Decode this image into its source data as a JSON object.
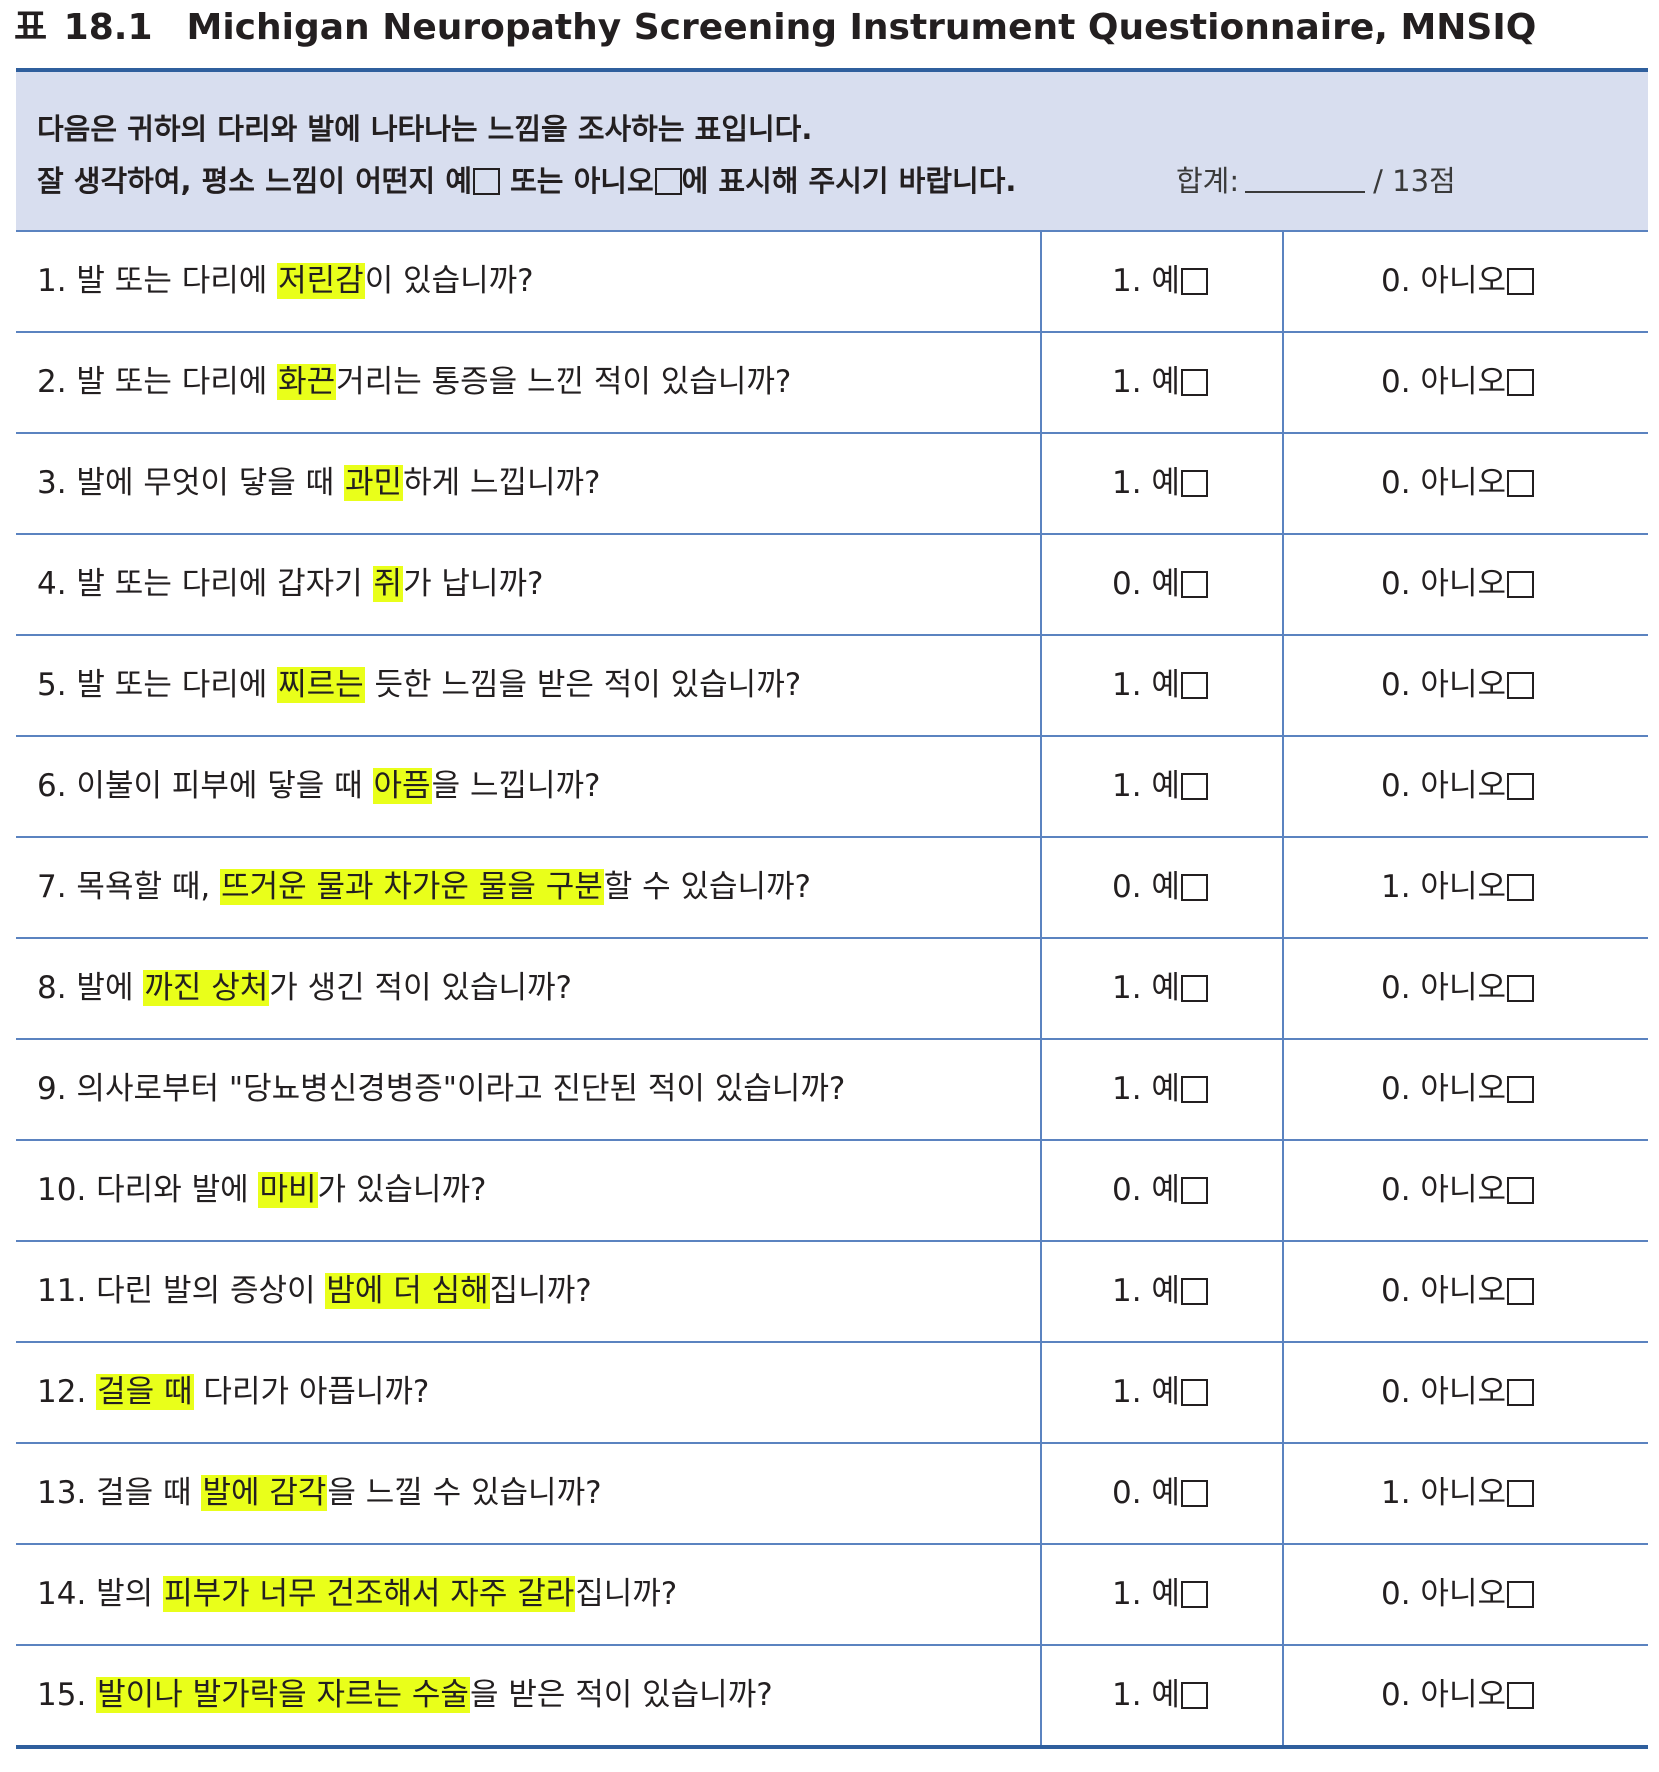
{
  "title": {
    "prefix": "표",
    "number": "18.1",
    "text": "Michigan Neuropathy Screening Instrument Questionnaire, MNSIQ"
  },
  "instructions": {
    "line1": "다음은 귀하의 다리와 발에 나타나는 느낌을 조사하는 표입니다.",
    "line2_a": "잘 생각하여, 평소 느낌이 어떤지 예",
    "line2_b": " 또는 아니오",
    "line2_c": "에 표시해 주시기 바랍니다."
  },
  "total": {
    "label": "합계:",
    "suffix": "/ 13점"
  },
  "questions": [
    {
      "parts": [
        "1. 발 또는 다리에 ",
        "저린감",
        "이 있습니까?"
      ],
      "yes": "1. 예",
      "no": "0. 아니오"
    },
    {
      "parts": [
        "2. 발 또는 다리에 ",
        "화끈",
        "거리는 통증을 느낀 적이 있습니까?"
      ],
      "yes": "1. 예",
      "no": "0. 아니오"
    },
    {
      "parts": [
        "3. 발에 무엇이 닿을 때 ",
        "과민",
        "하게 느낍니까?"
      ],
      "yes": "1. 예",
      "no": "0. 아니오"
    },
    {
      "parts": [
        "4. 발 또는 다리에 갑자기 ",
        "쥐",
        "가 납니까?"
      ],
      "yes": "0. 예",
      "no": "0. 아니오"
    },
    {
      "parts": [
        "5. 발 또는 다리에 ",
        "찌르는",
        " 듯한 느낌을 받은 적이 있습니까?"
      ],
      "yes": "1. 예",
      "no": "0. 아니오"
    },
    {
      "parts": [
        "6. 이불이 피부에 닿을 때 ",
        "아픔",
        "을 느낍니까?"
      ],
      "yes": "1. 예",
      "no": "0. 아니오"
    },
    {
      "parts": [
        "7. 목욕할 때, ",
        "뜨거운 물과 차가운 물을 구분",
        "할 수 있습니까?"
      ],
      "yes": "0. 예",
      "no": "1. 아니오"
    },
    {
      "parts": [
        "8. 발에 ",
        "까진 상처",
        "가 생긴 적이 있습니까?"
      ],
      "yes": "1. 예",
      "no": "0. 아니오"
    },
    {
      "parts": [
        "9. 의사로부터 \"당뇨병신경병증\"이라고 진단된 적이 있습니까?",
        "",
        ""
      ],
      "yes": "1. 예",
      "no": "0. 아니오"
    },
    {
      "parts": [
        "10. 다리와 발에 ",
        "마비",
        "가 있습니까?"
      ],
      "yes": "0. 예",
      "no": "0. 아니오"
    },
    {
      "parts": [
        "11. 다린 발의 증상이 ",
        "밤에 더 심해",
        "집니까?"
      ],
      "yes": "1. 예",
      "no": "0. 아니오"
    },
    {
      "parts": [
        "12. ",
        "걸을 때",
        " 다리가 아픕니까?"
      ],
      "yes": "1. 예",
      "no": "0. 아니오"
    },
    {
      "parts": [
        "13. 걸을 때 ",
        "발에 감각",
        "을 느낄 수 있습니까?"
      ],
      "yes": "0. 예",
      "no": "1. 아니오"
    },
    {
      "parts": [
        "14. 발의 ",
        "피부가 너무 건조해서 자주 갈라",
        "집니까?"
      ],
      "yes": "1. 예",
      "no": "0. 아니오"
    },
    {
      "parts": [
        "15. ",
        "발이나 발가락을 자르는 수술",
        "을 받은 적이 있습니까?"
      ],
      "yes": "1. 예",
      "no": "0. 아니오"
    }
  ]
}
